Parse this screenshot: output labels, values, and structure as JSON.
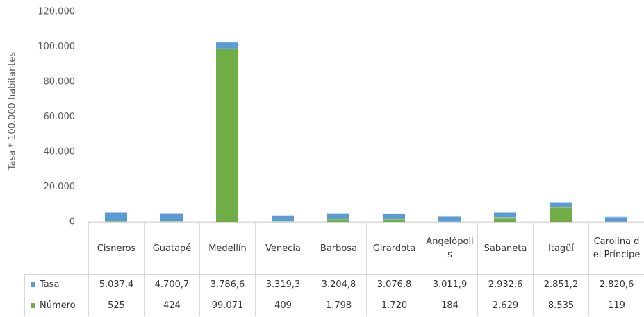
{
  "chart_data": {
    "type": "stacked-bar",
    "y_label": "Tasa * 100.000 habitantes",
    "categories": [
      "Cisneros",
      "Guatapé",
      "Medellín",
      "Venecia",
      "Barbosa",
      "Girardota",
      "Angelópolis",
      "Sabaneta",
      "Itagüí",
      "Carolina del Príncipe"
    ],
    "series": [
      {
        "name": "Tasa",
        "color": "#5b9bd5",
        "values": [
          5037.4,
          4700.7,
          3786.6,
          3319.3,
          3204.8,
          3076.8,
          3011.9,
          2932.6,
          2851.2,
          2820.6
        ],
        "value_labels": [
          "5.037,4",
          "4.700,7",
          "3.786,6",
          "3.319,3",
          "3.204,8",
          "3.076,8",
          "3.011,9",
          "2.932,6",
          "2.851,2",
          "2.820,6"
        ]
      },
      {
        "name": "Número",
        "color": "#70ad47",
        "values": [
          525,
          424,
          99071,
          409,
          1798,
          1720,
          184,
          2629,
          8535,
          119
        ],
        "value_labels": [
          "525",
          "424",
          "99.071",
          "409",
          "1.798",
          "1.720",
          "184",
          "2.629",
          "8.535",
          "119"
        ]
      }
    ],
    "ylim": [
      0,
      120000
    ],
    "yticks": [
      0,
      {
        "value": 20000,
        "label": "20.000"
      },
      {
        "value": 40000,
        "label": "40.000"
      },
      {
        "value": 60000,
        "label": "60.000"
      },
      {
        "value": 80000,
        "label": "80.000"
      },
      {
        "value": 100000,
        "label": "100.000"
      },
      {
        "value": 120000,
        "label": "120.000"
      }
    ],
    "grid": false
  }
}
